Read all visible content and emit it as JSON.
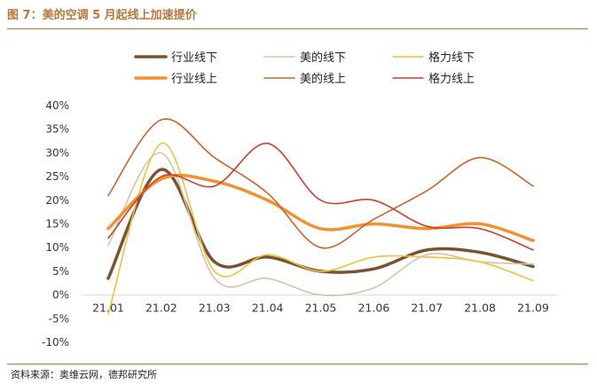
{
  "figure": {
    "title": "图 7：美的空调 5 月起线上加速提价",
    "source": "资料来源：奥维云网，德邦研究所"
  },
  "chart_data": {
    "type": "line",
    "title": "美的空调 5 月起线上加速提价",
    "categories": [
      "21.01",
      "21.02",
      "21.03",
      "21.04",
      "21.05",
      "21.06",
      "21.07",
      "21.08",
      "21.09"
    ],
    "y_ticks": [
      "40%",
      "35%",
      "30%",
      "25%",
      "20%",
      "15%",
      "10%",
      "5%",
      "0%",
      "-5%",
      "-10%"
    ],
    "ylim": [
      -10,
      40
    ],
    "y_unit": "%",
    "legend_position": "top",
    "series": [
      {
        "name": "行业线下",
        "color": "#7a5230",
        "width": 3.5,
        "values": [
          3.5,
          26.5,
          7,
          8,
          5,
          5.5,
          9.5,
          9,
          6
        ]
      },
      {
        "name": "美的线下",
        "color": "#d5c3a6",
        "width": 1.6,
        "values": [
          10.5,
          30,
          3.5,
          3.5,
          0,
          1.5,
          8.5,
          7,
          6.5
        ]
      },
      {
        "name": "格力线下",
        "color": "#f0c13c",
        "width": 1.6,
        "values": [
          -4,
          32,
          5,
          8.5,
          5,
          8,
          8,
          7,
          3
        ]
      },
      {
        "name": "行业线上",
        "color": "#f0922d",
        "width": 3.5,
        "values": [
          14,
          24.5,
          24,
          20,
          14,
          15,
          14,
          15,
          11.5
        ]
      },
      {
        "name": "美的线上",
        "color": "#c9632a",
        "width": 1.6,
        "values": [
          21,
          37,
          29,
          21.5,
          10,
          16,
          22,
          29,
          23
        ]
      },
      {
        "name": "格力线上",
        "color": "#cf3e2b",
        "width": 1.6,
        "values": [
          12,
          25,
          23,
          32,
          20,
          20,
          14.5,
          14,
          9.5
        ]
      }
    ]
  }
}
